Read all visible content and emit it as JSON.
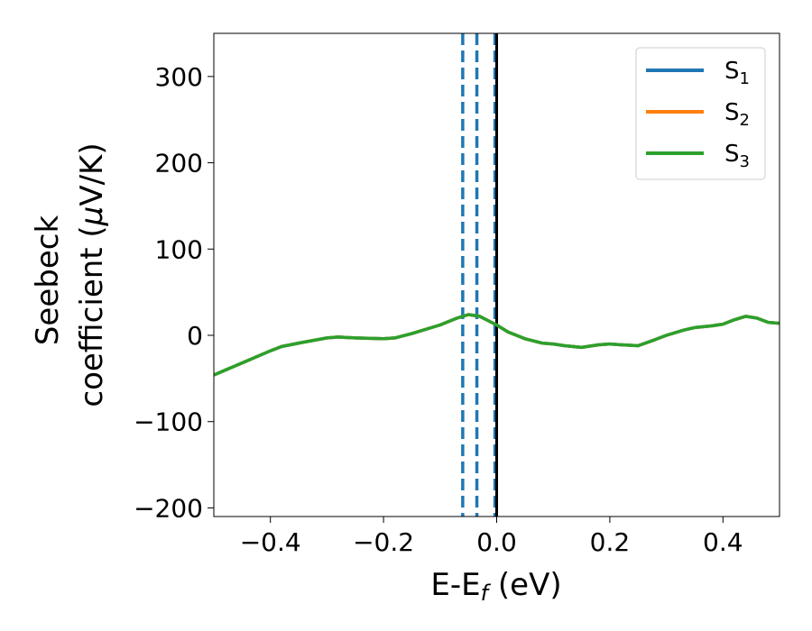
{
  "chart_data": {
    "type": "line",
    "xlabel": "E-E",
    "xlabel_sub": "f",
    "xlabel_unit": " (eV)",
    "ylabel_line1": "Seebeck",
    "ylabel_line2_prefix": "coefficient  (",
    "ylabel_mu": "μ",
    "ylabel_line2_suffix": "V/K)",
    "xlim": [
      -0.5,
      0.5
    ],
    "ylim": [
      -210,
      350
    ],
    "xticks": [
      -0.4,
      -0.2,
      0.0,
      0.2,
      0.4
    ],
    "xtick_labels": [
      "−0.4",
      "−0.2",
      "0.0",
      "0.2",
      "0.4"
    ],
    "yticks": [
      -200,
      -100,
      0,
      100,
      200,
      300
    ],
    "ytick_labels": [
      "−200",
      "−100",
      "0",
      "100",
      "200",
      "300"
    ],
    "grid": false,
    "legend_position": "top-right",
    "legend": [
      {
        "base": "S",
        "sub": "1",
        "color": "#1f77b4"
      },
      {
        "base": "S",
        "sub": "2",
        "color": "#ff7f0e"
      },
      {
        "base": "S",
        "sub": "3",
        "color": "#2ca02c"
      }
    ],
    "series": [
      {
        "color": "#1f77b4",
        "x": [
          -0.5,
          -0.45,
          -0.4,
          -0.38,
          -0.35,
          -0.3,
          -0.28,
          -0.25,
          -0.2,
          -0.18,
          -0.15,
          -0.1,
          -0.07,
          -0.05,
          -0.03,
          0.0,
          0.02,
          0.05,
          0.08,
          0.1,
          0.12,
          0.15,
          0.18,
          0.2,
          0.22,
          0.25,
          0.28,
          0.3,
          0.33,
          0.35,
          0.38,
          0.4,
          0.42,
          0.44,
          0.46,
          0.48,
          0.5
        ],
        "y": [
          -46,
          -32,
          -18,
          -13,
          -9,
          -3,
          -2,
          -3,
          -4,
          -3,
          2,
          12,
          20,
          24,
          22,
          12,
          4,
          -4,
          -9,
          -10,
          -12,
          -14,
          -11,
          -10,
          -11,
          -12,
          -5,
          0,
          6,
          9,
          11,
          13,
          18,
          22,
          20,
          15,
          14
        ]
      },
      {
        "color": "#ff7f0e",
        "x": [
          -0.5,
          -0.45,
          -0.4,
          -0.38,
          -0.35,
          -0.3,
          -0.28,
          -0.25,
          -0.2,
          -0.18,
          -0.15,
          -0.1,
          -0.07,
          -0.05,
          -0.03,
          0.0,
          0.02,
          0.05,
          0.08,
          0.1,
          0.12,
          0.15,
          0.18,
          0.2,
          0.22,
          0.25,
          0.28,
          0.3,
          0.33,
          0.35,
          0.38,
          0.4,
          0.42,
          0.44,
          0.46,
          0.48,
          0.5
        ],
        "y": [
          -46,
          -32,
          -18,
          -13,
          -9,
          -3,
          -2,
          -3,
          -4,
          -3,
          2,
          12,
          20,
          24,
          22,
          12,
          4,
          -4,
          -9,
          -10,
          -12,
          -14,
          -11,
          -10,
          -11,
          -12,
          -5,
          0,
          6,
          9,
          11,
          13,
          18,
          22,
          20,
          15,
          14
        ]
      },
      {
        "color": "#2ca02c",
        "x": [
          -0.5,
          -0.45,
          -0.4,
          -0.38,
          -0.35,
          -0.3,
          -0.28,
          -0.25,
          -0.2,
          -0.18,
          -0.15,
          -0.1,
          -0.07,
          -0.05,
          -0.03,
          0.0,
          0.02,
          0.05,
          0.08,
          0.1,
          0.12,
          0.15,
          0.18,
          0.2,
          0.22,
          0.25,
          0.28,
          0.3,
          0.33,
          0.35,
          0.38,
          0.4,
          0.42,
          0.44,
          0.46,
          0.48,
          0.5
        ],
        "y": [
          -46,
          -32,
          -18,
          -13,
          -9,
          -3,
          -2,
          -3,
          -4,
          -3,
          2,
          12,
          20,
          24,
          22,
          12,
          4,
          -4,
          -9,
          -10,
          -12,
          -14,
          -11,
          -10,
          -11,
          -12,
          -5,
          0,
          6,
          9,
          11,
          13,
          18,
          22,
          20,
          15,
          14
        ]
      }
    ],
    "vlines_dashed": {
      "color": "#1f77b4",
      "x": [
        -0.06,
        -0.035,
        -0.003
      ]
    },
    "vline_solid": {
      "color": "#000000",
      "x": 0.0
    }
  }
}
